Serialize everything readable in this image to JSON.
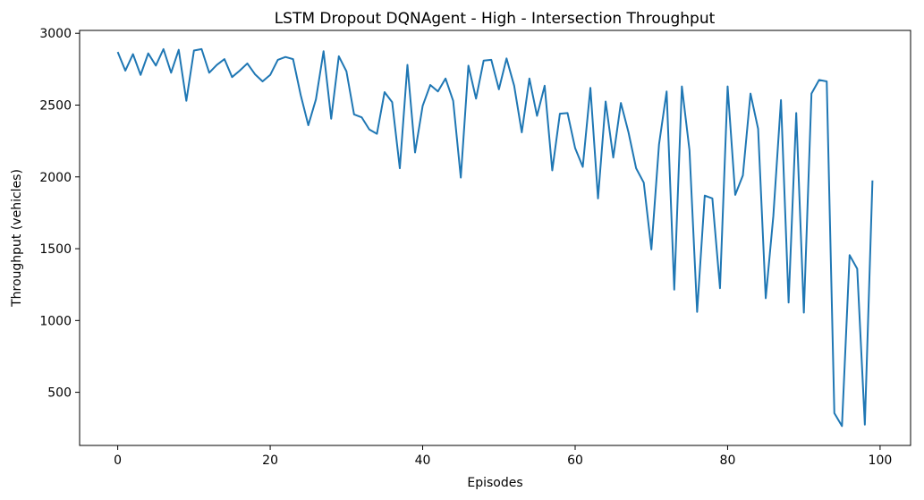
{
  "chart_data": {
    "type": "line",
    "title": "LSTM Dropout DQNAgent - High - Intersection Throughput",
    "xlabel": "Episodes",
    "ylabel": "Throughput (vehicles)",
    "xlim": [
      -5,
      104
    ],
    "ylim": [
      130,
      3020
    ],
    "xticks": [
      0,
      20,
      40,
      60,
      80,
      100
    ],
    "yticks": [
      500,
      1000,
      1500,
      2000,
      2500,
      3000
    ],
    "grid": false,
    "series": [
      {
        "color": "#1f77b4",
        "x": [
          0,
          1,
          2,
          3,
          4,
          5,
          6,
          7,
          8,
          9,
          10,
          11,
          12,
          13,
          14,
          15,
          16,
          17,
          18,
          19,
          20,
          21,
          22,
          23,
          24,
          25,
          26,
          27,
          28,
          29,
          30,
          31,
          32,
          33,
          34,
          35,
          36,
          37,
          38,
          39,
          40,
          41,
          42,
          43,
          44,
          45,
          46,
          47,
          48,
          49,
          50,
          51,
          52,
          53,
          54,
          55,
          56,
          57,
          58,
          59,
          60,
          61,
          62,
          63,
          64,
          65,
          66,
          67,
          68,
          69,
          70,
          71,
          72,
          73,
          74,
          75,
          76,
          77,
          78,
          79,
          80,
          81,
          82,
          83,
          84,
          85,
          86,
          87,
          88,
          89,
          90,
          91,
          92,
          93,
          94,
          95,
          96,
          97,
          98,
          99
        ],
        "y": [
          2870,
          2740,
          2855,
          2710,
          2860,
          2775,
          2890,
          2725,
          2885,
          2530,
          2880,
          2890,
          2725,
          2780,
          2820,
          2695,
          2740,
          2790,
          2715,
          2665,
          2710,
          2815,
          2835,
          2820,
          2570,
          2360,
          2540,
          2875,
          2405,
          2840,
          2735,
          2435,
          2415,
          2330,
          2300,
          2590,
          2520,
          2060,
          2780,
          2170,
          2495,
          2640,
          2595,
          2685,
          2530,
          1995,
          2775,
          2545,
          2810,
          2815,
          2610,
          2825,
          2635,
          2310,
          2685,
          2425,
          2635,
          2045,
          2440,
          2445,
          2200,
          2070,
          2620,
          1850,
          2525,
          2135,
          2515,
          2310,
          2060,
          1960,
          1495,
          2225,
          2595,
          1215,
          2630,
          2185,
          1060,
          1870,
          1850,
          1225,
          2630,
          1875,
          2010,
          2580,
          2335,
          1155,
          1730,
          2535,
          1125,
          2445,
          1055,
          2580,
          2675,
          2665,
          355,
          265,
          1455,
          1360,
          275,
          1975
        ]
      }
    ]
  }
}
